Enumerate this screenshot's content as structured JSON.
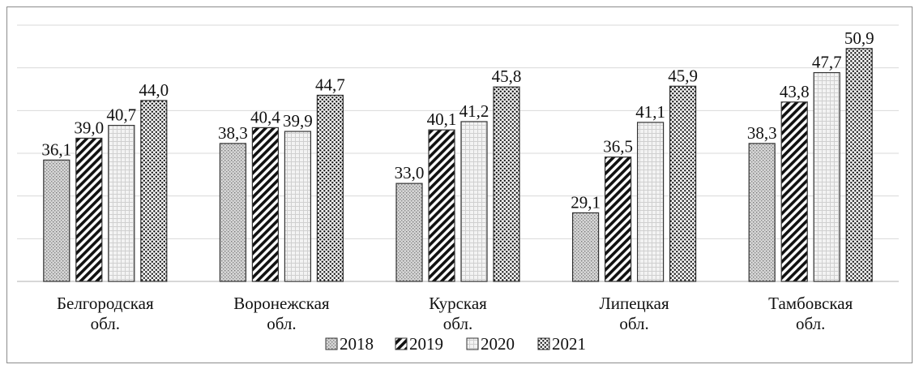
{
  "chart_data": {
    "type": "bar",
    "title": "",
    "xlabel": "",
    "ylabel": "",
    "ylim": [
      20,
      54
    ],
    "grid": true,
    "legend_position": "bottom",
    "value_labels": true,
    "categories": [
      [
        "Белгородская",
        "обл."
      ],
      [
        "Воронежская",
        "обл."
      ],
      [
        "Курская",
        "обл."
      ],
      [
        "Липецкая",
        "обл."
      ],
      [
        "Тамбовская",
        "обл."
      ]
    ],
    "series": [
      {
        "name": "2018",
        "pattern": "dots-fine",
        "values": [
          36.1,
          38.3,
          33.0,
          29.1,
          38.3
        ],
        "labels": [
          "36,1",
          "38,3",
          "33,0",
          "29,1",
          "38,3"
        ]
      },
      {
        "name": "2019",
        "pattern": "diagonal-stripes",
        "values": [
          39.0,
          40.4,
          40.1,
          36.5,
          43.8
        ],
        "labels": [
          "39,0",
          "40,4",
          "40,1",
          "36,5",
          "43,8"
        ]
      },
      {
        "name": "2020",
        "pattern": "light-grid",
        "values": [
          40.7,
          39.9,
          41.2,
          41.1,
          47.7
        ],
        "labels": [
          "40,7",
          "39,9",
          "41,2",
          "41,1",
          "47,7"
        ]
      },
      {
        "name": "2021",
        "pattern": "dense-dots",
        "values": [
          44.0,
          44.7,
          45.8,
          45.9,
          50.9
        ],
        "labels": [
          "44,0",
          "44,7",
          "45,8",
          "45,9",
          "50,9"
        ]
      }
    ]
  }
}
